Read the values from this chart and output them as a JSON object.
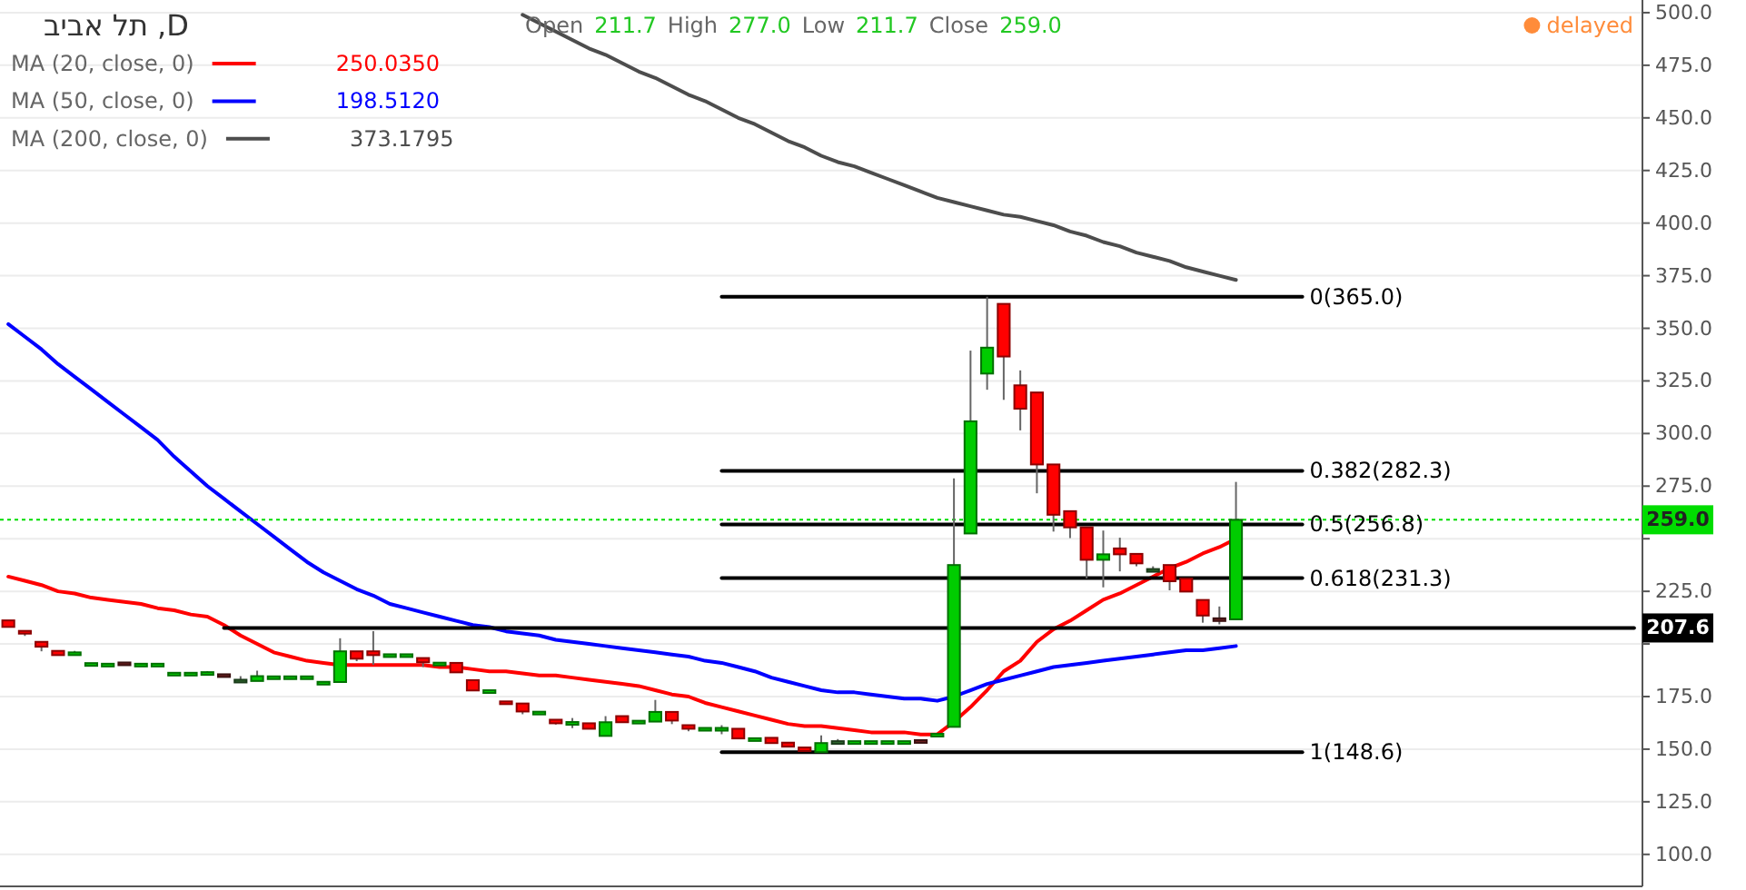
{
  "chart_data": {
    "type": "candlestick",
    "title": "D, תל אביב",
    "categories": [
      null,
      null,
      null,
      null,
      null,
      null,
      null,
      null,
      null,
      null,
      null,
      null,
      null,
      null,
      null,
      null,
      null,
      null,
      null,
      null,
      null,
      null,
      null,
      null,
      null,
      null,
      null,
      null,
      null,
      null,
      null,
      null,
      null,
      null,
      null,
      null,
      null,
      null,
      null,
      null,
      null,
      null,
      null,
      null,
      null,
      null,
      null,
      null,
      null,
      null,
      null,
      null,
      null,
      null,
      null,
      null,
      null,
      null,
      null,
      null,
      null,
      null,
      null,
      null,
      null,
      null,
      null,
      null,
      null,
      null,
      null,
      null,
      null,
      null,
      null,
      null,
      null,
      null,
      null,
      null,
      null,
      null,
      null,
      null,
      null,
      null,
      null,
      null,
      null,
      null,
      null,
      null,
      null,
      null,
      null,
      null,
      null,
      null,
      null
    ],
    "ohlc": [
      [
        211.2,
        211.2,
        208.1,
        208.1
      ],
      [
        206.2,
        206.2,
        203.8,
        205.7
      ],
      [
        201.0,
        201.0,
        196.5,
        198.7
      ],
      [
        196.7,
        196.7,
        194.7,
        194.7
      ],
      [
        195.6,
        196.7,
        195.0,
        196.0
      ],
      [
        190.6,
        191.0,
        190.5,
        190.9
      ],
      [
        190.4,
        190.6,
        190.4,
        190.6
      ],
      [
        191.2,
        191.2,
        190.9,
        190.9
      ],
      [
        190.4,
        190.6,
        190.4,
        190.6
      ],
      [
        190.4,
        190.6,
        190.4,
        190.6
      ],
      [
        186.1,
        186.3,
        186.1,
        186.3
      ],
      [
        186.1,
        186.3,
        186.1,
        186.3
      ],
      [
        186.4,
        187.1,
        186.4,
        186.6
      ],
      [
        185.6,
        185.6,
        184.5,
        184.5
      ],
      [
        181.9,
        184.7,
        181.9,
        183.0
      ],
      [
        182.4,
        187.3,
        182.4,
        184.7
      ],
      [
        184.4,
        184.6,
        184.4,
        184.6
      ],
      [
        184.4,
        184.6,
        184.4,
        184.6
      ],
      [
        184.4,
        184.6,
        184.4,
        184.6
      ],
      [
        181.8,
        182.0,
        181.8,
        182.0
      ],
      [
        181.9,
        202.7,
        181.9,
        196.5
      ],
      [
        196.5,
        196.5,
        191.8,
        193.0
      ],
      [
        196.5,
        206.1,
        190.1,
        194.7
      ],
      [
        194.9,
        195.1,
        194.9,
        195.1
      ],
      [
        194.9,
        195.1,
        194.9,
        195.1
      ],
      [
        193.3,
        193.3,
        189.0,
        191.3
      ],
      [
        190.9,
        191.1,
        190.9,
        191.1
      ],
      [
        191.0,
        191.0,
        186.5,
        186.5
      ],
      [
        182.8,
        182.8,
        177.9,
        177.9
      ],
      [
        177.8,
        178.0,
        177.8,
        178.0
      ],
      [
        172.7,
        172.7,
        172.4,
        172.4
      ],
      [
        171.7,
        171.7,
        166.6,
        167.9
      ],
      [
        167.6,
        167.8,
        167.6,
        167.8
      ],
      [
        164.0,
        164.0,
        161.7,
        162.3
      ],
      [
        162.7,
        164.8,
        160.0,
        162.9
      ],
      [
        162.3,
        162.3,
        159.7,
        159.7
      ],
      [
        156.3,
        165.7,
        156.3,
        162.8
      ],
      [
        165.7,
        165.7,
        162.8,
        162.8
      ],
      [
        163.3,
        163.5,
        163.3,
        163.5
      ],
      [
        163.1,
        173.4,
        163.1,
        167.7
      ],
      [
        167.7,
        167.7,
        161.9,
        163.6
      ],
      [
        161.4,
        161.4,
        158.5,
        159.7
      ],
      [
        159.9,
        160.1,
        159.9,
        160.1
      ],
      [
        159.9,
        161.4,
        157.1,
        160.1
      ],
      [
        159.7,
        159.7,
        155.1,
        155.1
      ],
      [
        155.0,
        155.2,
        155.0,
        155.2
      ],
      [
        155.4,
        155.4,
        152.9,
        152.9
      ],
      [
        153.1,
        153.1,
        151.2,
        151.2
      ],
      [
        150.8,
        150.8,
        148.8,
        149.1
      ],
      [
        148.6,
        156.6,
        148.6,
        152.9
      ],
      [
        153.6,
        154.8,
        153.6,
        153.8
      ],
      [
        153.6,
        153.8,
        153.6,
        153.8
      ],
      [
        153.6,
        153.8,
        153.6,
        153.8
      ],
      [
        153.6,
        153.8,
        153.6,
        153.8
      ],
      [
        153.6,
        153.8,
        153.6,
        153.8
      ],
      [
        154.3,
        154.3,
        154.1,
        154.1
      ],
      [
        157.1,
        157.3,
        157.1,
        157.3
      ],
      [
        160.6,
        278.7,
        160.6,
        237.5
      ],
      [
        252.5,
        339.4,
        252.5,
        305.8
      ],
      [
        328.5,
        365.0,
        320.8,
        340.8
      ],
      [
        361.6,
        361.6,
        316.0,
        336.6
      ],
      [
        322.9,
        330.0,
        301.5,
        311.8
      ],
      [
        319.5,
        319.5,
        271.6,
        285.3
      ],
      [
        285.3,
        285.3,
        253.4,
        261.4
      ],
      [
        263.1,
        263.1,
        250.3,
        255.4
      ],
      [
        255.4,
        255.4,
        231.1,
        240.0
      ],
      [
        240.0,
        253.9,
        226.9,
        242.6
      ],
      [
        245.4,
        250.5,
        234.5,
        242.6
      ],
      [
        242.8,
        242.8,
        236.9,
        238.3
      ],
      [
        235.2,
        236.9,
        234.3,
        235.6
      ],
      [
        237.5,
        237.5,
        225.5,
        229.8
      ],
      [
        231.1,
        231.1,
        224.9,
        224.9
      ],
      [
        220.9,
        220.9,
        210.1,
        213.5
      ],
      [
        212.2,
        217.8,
        209.3,
        211.6
      ],
      [
        211.7,
        277.0,
        211.7,
        259.0
      ],
      null,
      null,
      null,
      null,
      null,
      null,
      null,
      null,
      null,
      null,
      null,
      null,
      null,
      null,
      null,
      null,
      null,
      null,
      null,
      null,
      null,
      null,
      null,
      null
    ],
    "colors": [
      "#ff0000",
      "#ff0000",
      "#ff0000",
      "#ff0000",
      "#00cc00",
      "#00cc00",
      "#00cc00",
      "#6b1f1f",
      "#00cc00",
      "#00cc00",
      "#00cc00",
      "#00cc00",
      "#00cc00",
      "#6b1f1f",
      "#2f6b2f",
      "#00cc00",
      "#00cc00",
      "#00cc00",
      "#00cc00",
      "#00cc00",
      "#00cc00",
      "#ff0000",
      "#ff0000",
      "#00cc00",
      "#00cc00",
      "#ff0000",
      "#00cc00",
      "#ff0000",
      "#ff0000",
      "#00cc00",
      "#ff0000",
      "#ff0000",
      "#00cc00",
      "#ff0000",
      "#00cc00",
      "#ff0000",
      "#00cc00",
      "#ff0000",
      "#00cc00",
      "#00cc00",
      "#ff0000",
      "#ff0000",
      "#00cc00",
      "#00cc00",
      "#ff0000",
      "#00cc00",
      "#ff0000",
      "#ff0000",
      "#ff0000",
      "#00cc00",
      "#2f6b2f",
      "#00cc00",
      "#00cc00",
      "#00cc00",
      "#00cc00",
      "#6b1f1f",
      "#00cc00",
      "#00cc00",
      "#00cc00",
      "#00cc00",
      "#ff0000",
      "#ff0000",
      "#ff0000",
      "#ff0000",
      "#ff0000",
      "#ff0000",
      "#00cc00",
      "#ff0000",
      "#ff0000",
      "#2f6b2f",
      "#ff0000",
      "#ff0000",
      "#ff0000",
      "#6b1f1f",
      "#00cc00",
      null,
      null,
      null,
      null,
      null,
      null,
      null,
      null,
      null,
      null,
      null,
      null,
      null,
      null,
      null,
      null,
      null,
      null,
      null,
      null,
      null,
      null,
      null,
      null
    ],
    "series": [
      {
        "name": "MA (20, close, 0)",
        "type": "line",
        "color": "#ff0000",
        "values": [
          232,
          230,
          228,
          225,
          224,
          222,
          221,
          220,
          219,
          217,
          216,
          214,
          213,
          209,
          204,
          200,
          196,
          194,
          192,
          191,
          190,
          190,
          190,
          190,
          190,
          190,
          189,
          189,
          188,
          187,
          187,
          186,
          185,
          185,
          184,
          183,
          182,
          181,
          180,
          178,
          176,
          175,
          172,
          170,
          168,
          166,
          164,
          162,
          161,
          161,
          160,
          159,
          158,
          158,
          158,
          157,
          157,
          163,
          170,
          178,
          187,
          192,
          201,
          207,
          211,
          216,
          221,
          224,
          228,
          232,
          236,
          239,
          243,
          246,
          250,
          null,
          null,
          null,
          null,
          null,
          null,
          null,
          null,
          null,
          null,
          null,
          null,
          null,
          null,
          null,
          null,
          null,
          null,
          null,
          null,
          null,
          null,
          null,
          null
        ]
      },
      {
        "name": "MA (50, close, 0)",
        "type": "line",
        "color": "#0000ff",
        "values": [
          352,
          346,
          340,
          333,
          327,
          321,
          315,
          309,
          303,
          297,
          289,
          282,
          275,
          269,
          263,
          257,
          251,
          245,
          239,
          234,
          230,
          226,
          223,
          219,
          217,
          215,
          213,
          211,
          209,
          208,
          206,
          205,
          204,
          202,
          201,
          200,
          199,
          198,
          197,
          196,
          195,
          194,
          192,
          191,
          189,
          187,
          184,
          182,
          180,
          178,
          177,
          177,
          176,
          175,
          174,
          174,
          173,
          175,
          178,
          181,
          183,
          185,
          187,
          189,
          190,
          191,
          192,
          193,
          194,
          195,
          196,
          197,
          197,
          198,
          199,
          null,
          null,
          null,
          null,
          null,
          null,
          null,
          null,
          null,
          null,
          null,
          null,
          null,
          null,
          null,
          null,
          null,
          null,
          null,
          null,
          null,
          null,
          null,
          null
        ]
      },
      {
        "name": "MA (200, close, 0)",
        "type": "line",
        "color": "#4d4d4d",
        "values": [
          null,
          null,
          null,
          null,
          null,
          null,
          null,
          null,
          null,
          null,
          null,
          null,
          null,
          null,
          null,
          null,
          null,
          null,
          null,
          null,
          null,
          null,
          null,
          null,
          null,
          null,
          null,
          null,
          null,
          null,
          null,
          499,
          495,
          491,
          487,
          483,
          480,
          476,
          472,
          469,
          465,
          461,
          458,
          454,
          450,
          447,
          443,
          439,
          436,
          432,
          429,
          427,
          424,
          421,
          418,
          415,
          412,
          410,
          408,
          406,
          404,
          403,
          401,
          399,
          396,
          394,
          391,
          389,
          386,
          384,
          382,
          379,
          377,
          375,
          373,
          null,
          null,
          null,
          null,
          null,
          null,
          null,
          null,
          null,
          null,
          null,
          null,
          null,
          null,
          null,
          null,
          null,
          null,
          null,
          null,
          null,
          null,
          null,
          null
        ]
      },
      {
        "name": "0(365.0)",
        "type": "line",
        "color": "#000000",
        "values": [
          null,
          null,
          null,
          null,
          null,
          null,
          null,
          null,
          null,
          null,
          null,
          null,
          null,
          null,
          null,
          null,
          null,
          null,
          null,
          null,
          null,
          null,
          null,
          null,
          null,
          null,
          null,
          null,
          null,
          null,
          null,
          null,
          null,
          null,
          null,
          null,
          null,
          null,
          null,
          null,
          null,
          null,
          null,
          365.0,
          365.0,
          365.0,
          365.0,
          365.0,
          365.0,
          365.0,
          365.0,
          365.0,
          365.0,
          365.0,
          365.0,
          365.0,
          365.0,
          365.0,
          365.0,
          365.0,
          365.0,
          365.0,
          365.0,
          365.0,
          365.0,
          365.0,
          365.0,
          365.0,
          365.0,
          365.0,
          365.0,
          365.0,
          365.0,
          365.0,
          365.0,
          365.0,
          365.0,
          365.0,
          365.0,
          null,
          null,
          null,
          null,
          null,
          null,
          null,
          null,
          null,
          null,
          null,
          null,
          null,
          null,
          null,
          null,
          null,
          null,
          null,
          null
        ]
      },
      {
        "name": "0.382(282.3)",
        "type": "line",
        "color": "#000000",
        "values": [
          null,
          null,
          null,
          null,
          null,
          null,
          null,
          null,
          null,
          null,
          null,
          null,
          null,
          null,
          null,
          null,
          null,
          null,
          null,
          null,
          null,
          null,
          null,
          null,
          null,
          null,
          null,
          null,
          null,
          null,
          null,
          null,
          null,
          null,
          null,
          null,
          null,
          null,
          null,
          null,
          null,
          null,
          null,
          282.3,
          282.3,
          282.3,
          282.3,
          282.3,
          282.3,
          282.3,
          282.3,
          282.3,
          282.3,
          282.3,
          282.3,
          282.3,
          282.3,
          282.3,
          282.3,
          282.3,
          282.3,
          282.3,
          282.3,
          282.3,
          282.3,
          282.3,
          282.3,
          282.3,
          282.3,
          282.3,
          282.3,
          282.3,
          282.3,
          282.3,
          282.3,
          282.3,
          282.3,
          282.3,
          282.3,
          null,
          null,
          null,
          null,
          null,
          null,
          null,
          null,
          null,
          null,
          null,
          null,
          null,
          null,
          null,
          null,
          null,
          null,
          null,
          null
        ]
      },
      {
        "name": "0.5(256.8)",
        "type": "line",
        "color": "#000000",
        "values": [
          null,
          null,
          null,
          null,
          null,
          null,
          null,
          null,
          null,
          null,
          null,
          null,
          null,
          null,
          null,
          null,
          null,
          null,
          null,
          null,
          null,
          null,
          null,
          null,
          null,
          null,
          null,
          null,
          null,
          null,
          null,
          null,
          null,
          null,
          null,
          null,
          null,
          null,
          null,
          null,
          null,
          null,
          null,
          256.8,
          256.8,
          256.8,
          256.8,
          256.8,
          256.8,
          256.8,
          256.8,
          256.8,
          256.8,
          256.8,
          256.8,
          256.8,
          256.8,
          256.8,
          256.8,
          256.8,
          256.8,
          256.8,
          256.8,
          256.8,
          256.8,
          256.8,
          256.8,
          256.8,
          256.8,
          256.8,
          256.8,
          256.8,
          256.8,
          256.8,
          256.8,
          256.8,
          256.8,
          256.8,
          256.8,
          null,
          null,
          null,
          null,
          null,
          null,
          null,
          null,
          null,
          null,
          null,
          null,
          null,
          null,
          null,
          null,
          null,
          null,
          null,
          null
        ]
      },
      {
        "name": "0.618(231.3)",
        "type": "line",
        "color": "#000000",
        "values": [
          null,
          null,
          null,
          null,
          null,
          null,
          null,
          null,
          null,
          null,
          null,
          null,
          null,
          null,
          null,
          null,
          null,
          null,
          null,
          null,
          null,
          null,
          null,
          null,
          null,
          null,
          null,
          null,
          null,
          null,
          null,
          null,
          null,
          null,
          null,
          null,
          null,
          null,
          null,
          null,
          null,
          null,
          null,
          231.3,
          231.3,
          231.3,
          231.3,
          231.3,
          231.3,
          231.3,
          231.3,
          231.3,
          231.3,
          231.3,
          231.3,
          231.3,
          231.3,
          231.3,
          231.3,
          231.3,
          231.3,
          231.3,
          231.3,
          231.3,
          231.3,
          231.3,
          231.3,
          231.3,
          231.3,
          231.3,
          231.3,
          231.3,
          231.3,
          231.3,
          231.3,
          231.3,
          231.3,
          231.3,
          231.3,
          null,
          null,
          null,
          null,
          null,
          null,
          null,
          null,
          null,
          null,
          null,
          null,
          null,
          null,
          null,
          null,
          null,
          null,
          null,
          null
        ]
      },
      {
        "name": "1(148.6)",
        "type": "line",
        "color": "#000000",
        "values": [
          null,
          null,
          null,
          null,
          null,
          null,
          null,
          null,
          null,
          null,
          null,
          null,
          null,
          null,
          null,
          null,
          null,
          null,
          null,
          null,
          null,
          null,
          null,
          null,
          null,
          null,
          null,
          null,
          null,
          null,
          null,
          null,
          null,
          null,
          null,
          null,
          null,
          null,
          null,
          null,
          null,
          null,
          null,
          148.6,
          148.6,
          148.6,
          148.6,
          148.6,
          148.6,
          148.6,
          148.6,
          148.6,
          148.6,
          148.6,
          148.6,
          148.6,
          148.6,
          148.6,
          148.6,
          148.6,
          148.6,
          148.6,
          148.6,
          148.6,
          148.6,
          148.6,
          148.6,
          148.6,
          148.6,
          148.6,
          148.6,
          148.6,
          148.6,
          148.6,
          148.6,
          148.6,
          148.6,
          148.6,
          148.6,
          null,
          null,
          null,
          null,
          null,
          null,
          null,
          null,
          null,
          null,
          null,
          null,
          null,
          null,
          null,
          null,
          null,
          null,
          null,
          null
        ]
      },
      {
        "name": "207.6",
        "type": "line",
        "color": "#000000",
        "values": [
          null,
          null,
          null,
          null,
          null,
          null,
          null,
          null,
          null,
          null,
          null,
          null,
          null,
          207.6,
          207.6,
          207.6,
          207.6,
          207.6,
          207.6,
          207.6,
          207.6,
          207.6,
          207.6,
          207.6,
          207.6,
          207.6,
          207.6,
          207.6,
          207.6,
          207.6,
          207.6,
          207.6,
          207.6,
          207.6,
          207.6,
          207.6,
          207.6,
          207.6,
          207.6,
          207.6,
          207.6,
          207.6,
          207.6,
          207.6,
          207.6,
          207.6,
          207.6,
          207.6,
          207.6,
          207.6,
          207.6,
          207.6,
          207.6,
          207.6,
          207.6,
          207.6,
          207.6,
          207.6,
          207.6,
          207.6,
          207.6,
          207.6,
          207.6,
          207.6,
          207.6,
          207.6,
          207.6,
          207.6,
          207.6,
          207.6,
          207.6,
          207.6,
          207.6,
          207.6,
          207.6,
          207.6,
          207.6,
          207.6,
          207.6,
          207.6,
          207.6,
          207.6,
          207.6,
          207.6,
          207.6,
          207.6,
          207.6,
          207.6,
          207.6,
          207.6,
          207.6,
          207.6,
          207.6,
          207.6,
          207.6,
          207.6,
          207.6,
          207.6,
          207.6
        ]
      }
    ],
    "ref_lines": [
      {
        "axis": "y",
        "value": 259.0,
        "label": "259.0",
        "color": "#00dd00",
        "line_style": "dotted"
      }
    ],
    "annotations": [
      "Open 211.7 High 277.0 Low 211.7 Close 259.0",
      "250.0350",
      "198.5120",
      "373.1795",
      "delayed"
    ],
    "ylim": [
      84.8,
      501.7
    ],
    "yticks": [
      {
        "value": 100,
        "label": "100.0"
      },
      {
        "value": 125,
        "label": "125.0"
      },
      {
        "value": 150,
        "label": "150.0"
      },
      {
        "value": 175,
        "label": "175.0"
      },
      {
        "value": 200,
        "label": null
      },
      {
        "value": 225,
        "label": "225.0"
      },
      {
        "value": 250,
        "label": null
      },
      {
        "value": 275,
        "label": "275.0"
      },
      {
        "value": 300,
        "label": "300.0"
      },
      {
        "value": 325,
        "label": "325.0"
      },
      {
        "value": 350,
        "label": "350.0"
      },
      {
        "value": 375,
        "label": "375.0"
      },
      {
        "value": 400,
        "label": "400.0"
      },
      {
        "value": 425,
        "label": "425.0"
      },
      {
        "value": 450,
        "label": "450.0"
      },
      {
        "value": 475,
        "label": "475.0"
      },
      {
        "value": 500,
        "label": "500.0"
      }
    ],
    "grid": "y",
    "legend": "top left",
    "tick_labels": "y"
  }
}
